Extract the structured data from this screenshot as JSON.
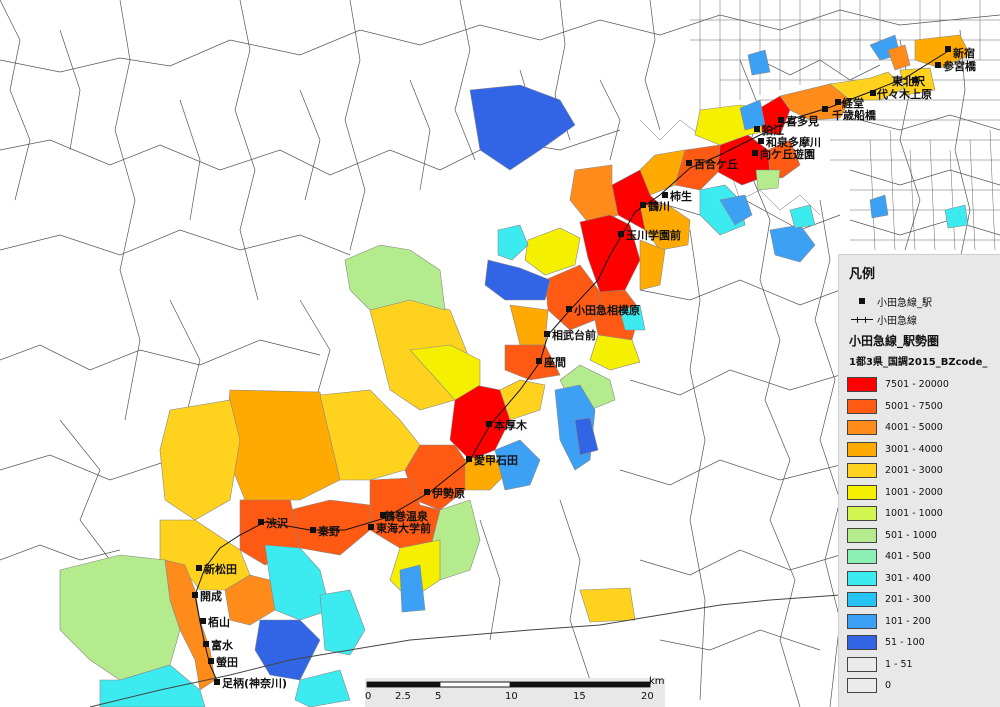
{
  "map": {
    "stations": [
      {
        "label": "新宿",
        "kind": "label"
      },
      {
        "label": "参宮橋",
        "kind": "label"
      },
      {
        "label": "東北沢",
        "kind": "label"
      },
      {
        "label": "代々木上原",
        "kind": "label"
      },
      {
        "label": "経堂",
        "kind": "label"
      },
      {
        "label": "千歳船橋",
        "kind": "label"
      },
      {
        "label": "喜多見",
        "kind": "label"
      },
      {
        "label": "和泉多摩川",
        "kind": "label"
      },
      {
        "label": "狛江",
        "kind": "label"
      },
      {
        "label": "向ケ丘遊園",
        "kind": "label"
      },
      {
        "label": "百合ケ丘",
        "kind": "label"
      },
      {
        "label": "柿生",
        "kind": "label"
      },
      {
        "label": "鶴川",
        "kind": "label"
      },
      {
        "label": "玉川学園前",
        "kind": "label"
      },
      {
        "label": "小田急相模原",
        "kind": "label"
      },
      {
        "label": "相武台前",
        "kind": "label"
      },
      {
        "label": "座間",
        "kind": "label"
      },
      {
        "label": "本厚木",
        "kind": "label"
      },
      {
        "label": "愛甲石田",
        "kind": "label"
      },
      {
        "label": "伊勢原",
        "kind": "label"
      },
      {
        "label": "鶴巻温泉",
        "kind": "label"
      },
      {
        "label": "東海大学前",
        "kind": "label"
      },
      {
        "label": "秦野",
        "kind": "label"
      },
      {
        "label": "渋沢",
        "kind": "label"
      },
      {
        "label": "新松田",
        "kind": "label"
      },
      {
        "label": "開成",
        "kind": "label"
      },
      {
        "label": "栢山",
        "kind": "label"
      },
      {
        "label": "富水",
        "kind": "label"
      },
      {
        "label": "螢田",
        "kind": "label"
      },
      {
        "label": "足柄(神奈川)",
        "kind": "label"
      }
    ]
  },
  "legend": {
    "title": "凡例",
    "station_item": "小田急線_駅",
    "line_item": "小田急線",
    "layer_title": "小田急線_駅勢圏",
    "field_title": "1都3県_国調2015_BZcode_",
    "classes": [
      {
        "label": "7501 - 20000",
        "color": "#ff0000"
      },
      {
        "label": "5001 - 7500",
        "color": "#ff5a14"
      },
      {
        "label": "4001 - 5000",
        "color": "#ff8c1a"
      },
      {
        "label": "3001 - 4000",
        "color": "#ffaa00"
      },
      {
        "label": "2001 - 3000",
        "color": "#ffd21e"
      },
      {
        "label": "1001 - 2000",
        "color": "#f5f000"
      },
      {
        "label": "1001 - 1000",
        "color": "#d2f550"
      },
      {
        "label": "501 - 1000",
        "color": "#b4eb8c"
      },
      {
        "label": "401 - 500",
        "color": "#8cf0b4"
      },
      {
        "label": "301 - 400",
        "color": "#3cebf0"
      },
      {
        "label": "201 - 300",
        "color": "#28c3f5"
      },
      {
        "label": "101 - 200",
        "color": "#3ca0f5"
      },
      {
        "label": "51 - 100",
        "color": "#3264e6"
      },
      {
        "label": "1 - 51",
        "color": "#ebebeb"
      },
      {
        "label": "0",
        "color": "#ebebeb"
      }
    ]
  },
  "scalebar": {
    "ticks": [
      "0",
      "2.5",
      "5",
      "10",
      "15",
      "20"
    ],
    "unit": "km"
  }
}
